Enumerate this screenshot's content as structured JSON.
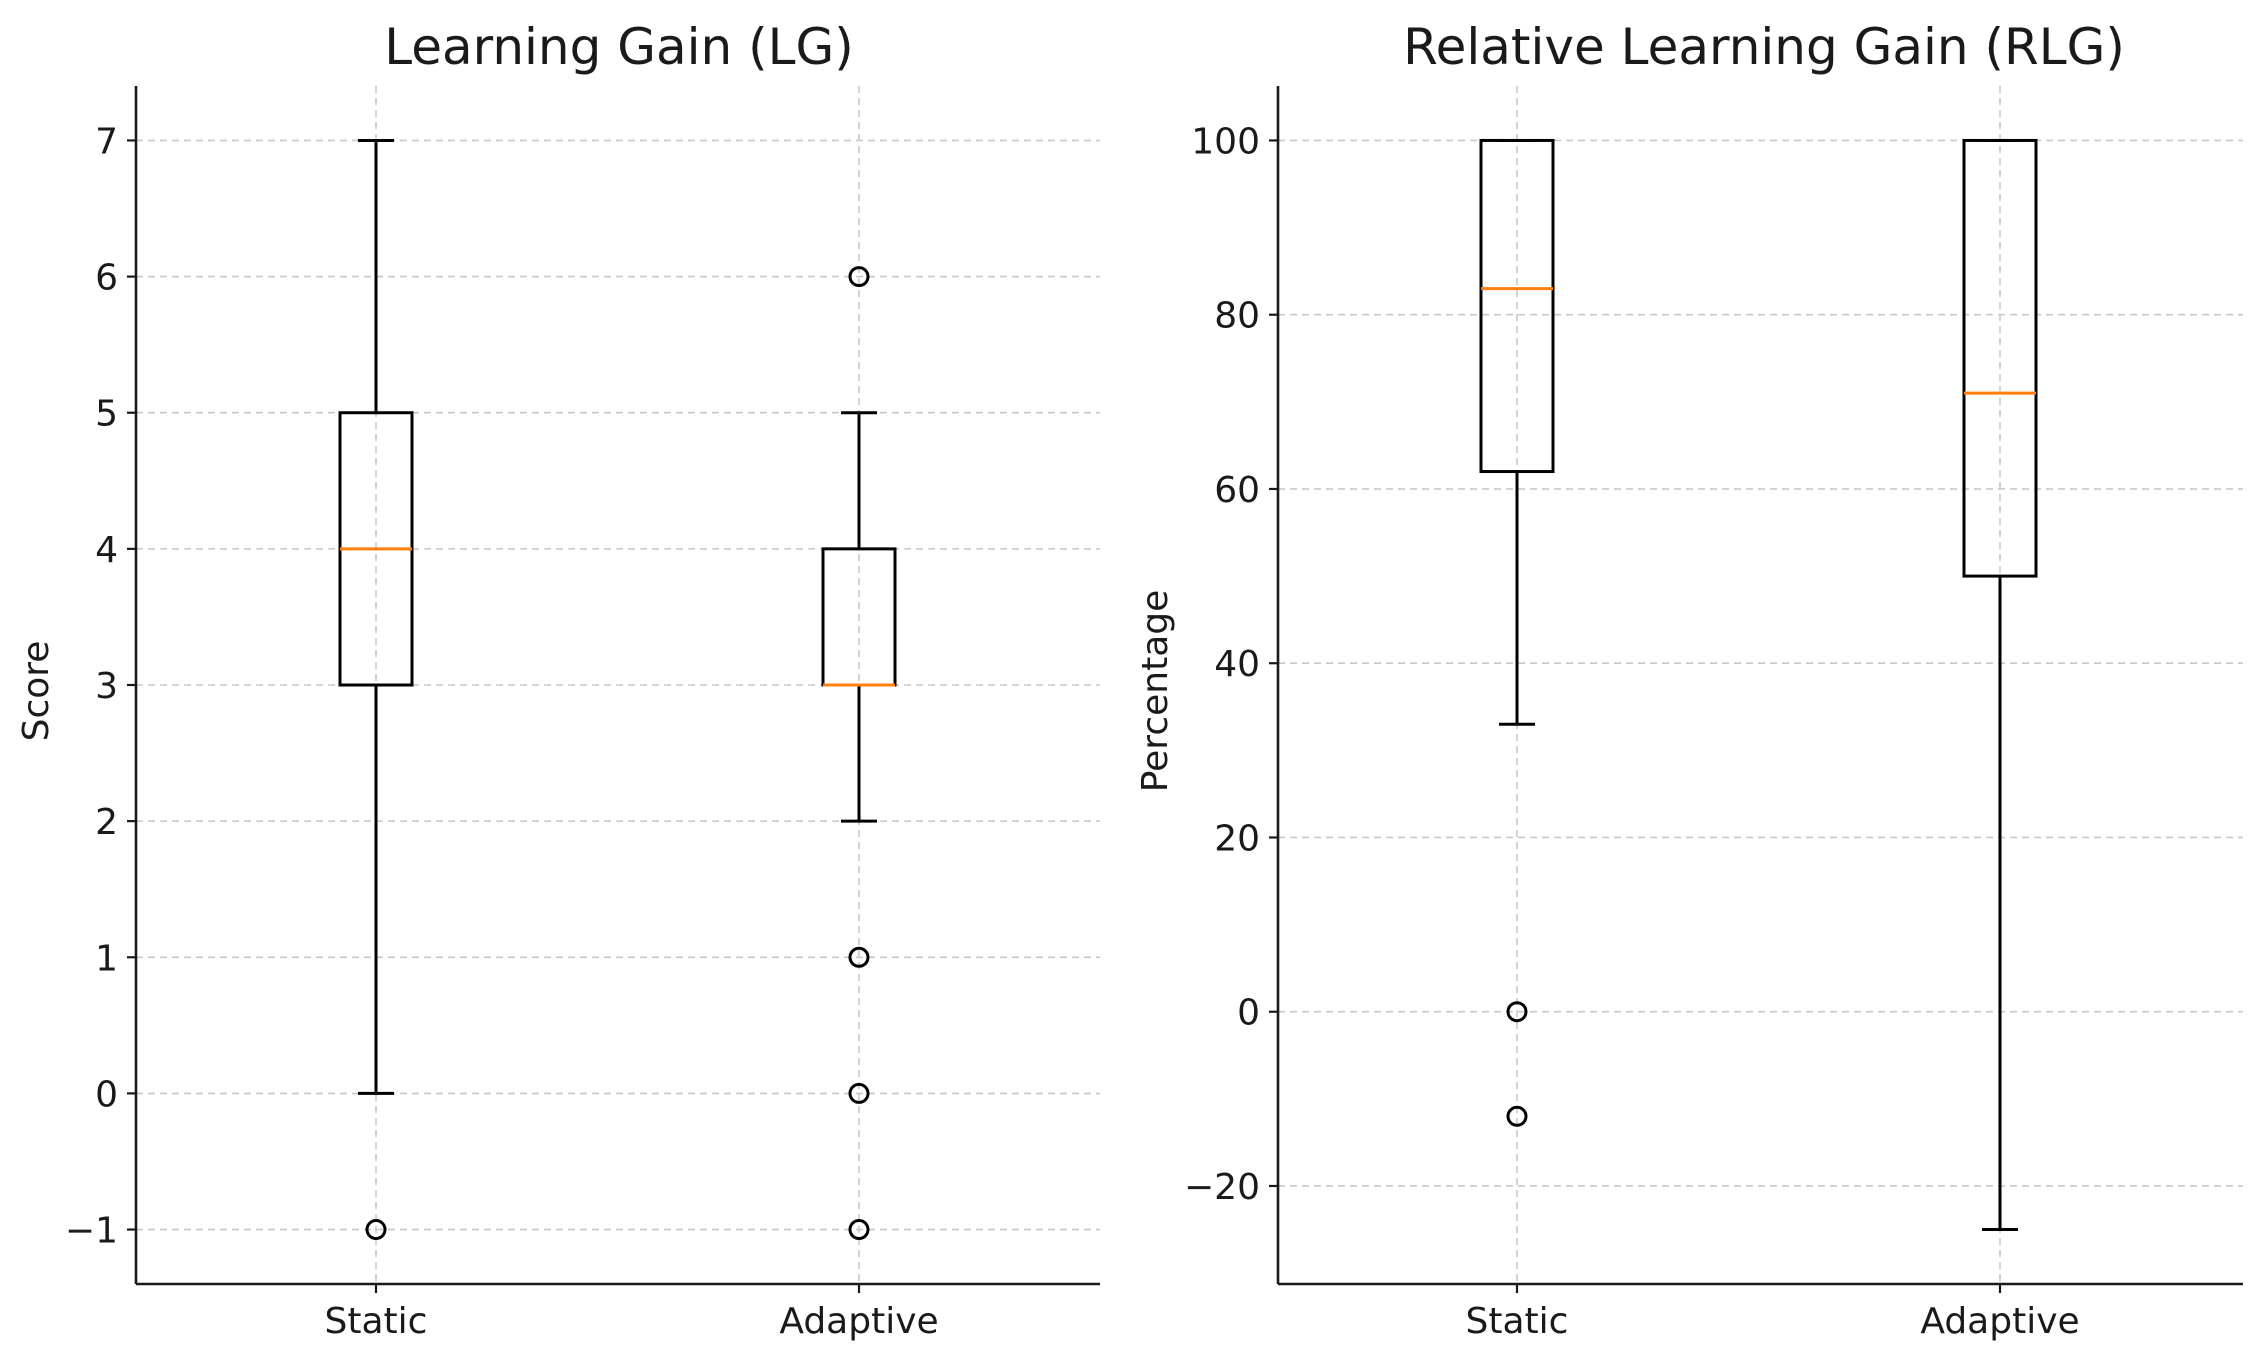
{
  "chart_data": [
    {
      "type": "boxplot",
      "title": "Learning Gain (LG)",
      "xlabel": "",
      "ylabel": "Score",
      "ylim": [
        -1.4,
        7.4
      ],
      "yticks": [
        -1,
        0,
        1,
        2,
        3,
        4,
        5,
        6,
        7
      ],
      "ytick_labels": [
        "−1",
        "0",
        "1",
        "2",
        "3",
        "4",
        "5",
        "6",
        "7"
      ],
      "grid": true,
      "median_color": "#ff7f0e",
      "categories": [
        "Static",
        "Adaptive"
      ],
      "boxes": [
        {
          "name": "Static",
          "whisker_low": 0,
          "q1": 3,
          "median": 4,
          "q3": 5,
          "whisker_high": 7,
          "outliers": [
            -1
          ]
        },
        {
          "name": "Adaptive",
          "whisker_low": 2,
          "q1": 3,
          "median": 3,
          "q3": 4,
          "whisker_high": 5,
          "outliers": [
            6,
            1,
            0,
            -1
          ]
        }
      ]
    },
    {
      "type": "boxplot",
      "title": "Relative Learning Gain (RLG)",
      "xlabel": "",
      "ylabel": "Percentage",
      "ylim": [
        -31.25,
        106.25
      ],
      "yticks": [
        -20,
        0,
        20,
        40,
        60,
        80,
        100
      ],
      "ytick_labels": [
        "−20",
        "0",
        "20",
        "40",
        "60",
        "80",
        "100"
      ],
      "grid": true,
      "median_color": "#ff7f0e",
      "categories": [
        "Static",
        "Adaptive"
      ],
      "boxes": [
        {
          "name": "Static",
          "whisker_low": 33,
          "q1": 62,
          "median": 83,
          "q3": 100,
          "whisker_high": 100,
          "outliers": [
            0,
            -12
          ]
        },
        {
          "name": "Adaptive",
          "whisker_low": -25,
          "q1": 50,
          "median": 71,
          "q3": 100,
          "whisker_high": 100,
          "outliers": []
        }
      ]
    }
  ]
}
